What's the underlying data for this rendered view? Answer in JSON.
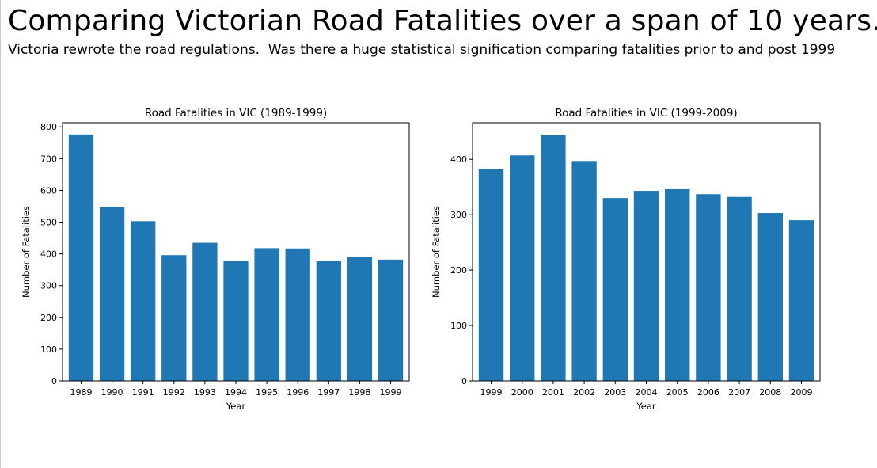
{
  "slide": {
    "title": "Comparing Victorian Road Fatalities over a span of 10 years.",
    "subtitle": "Victoria rewrote the road regulations.  Was there a huge statistical signification comparing fatalities prior to and post 1999"
  },
  "colors": {
    "bar": "#1f77b4"
  },
  "chart_data": [
    {
      "type": "bar",
      "title": "Road Fatalities in VIC (1989-1999)",
      "xlabel": "Year",
      "ylabel": "Number of Fatalities",
      "categories": [
        "1989",
        "1990",
        "1991",
        "1992",
        "1993",
        "1994",
        "1995",
        "1996",
        "1997",
        "1998",
        "1999"
      ],
      "values": [
        776,
        548,
        503,
        396,
        435,
        377,
        418,
        417,
        377,
        390,
        382
      ],
      "ylim": [
        0,
        813
      ],
      "yticks": [
        0,
        100,
        200,
        300,
        400,
        500,
        600,
        700,
        800
      ],
      "grid": false,
      "legend": "none"
    },
    {
      "type": "bar",
      "title": "Road Fatalities in VIC (1999-2009)",
      "xlabel": "Year",
      "ylabel": "Number of Fatalities",
      "categories": [
        "1999",
        "2000",
        "2001",
        "2002",
        "2003",
        "2004",
        "2005",
        "2006",
        "2007",
        "2008",
        "2009"
      ],
      "values": [
        382,
        407,
        444,
        397,
        330,
        343,
        346,
        337,
        332,
        303,
        290
      ],
      "ylim": [
        0,
        466
      ],
      "yticks": [
        0,
        100,
        200,
        300,
        400
      ],
      "grid": false,
      "legend": "none"
    }
  ]
}
